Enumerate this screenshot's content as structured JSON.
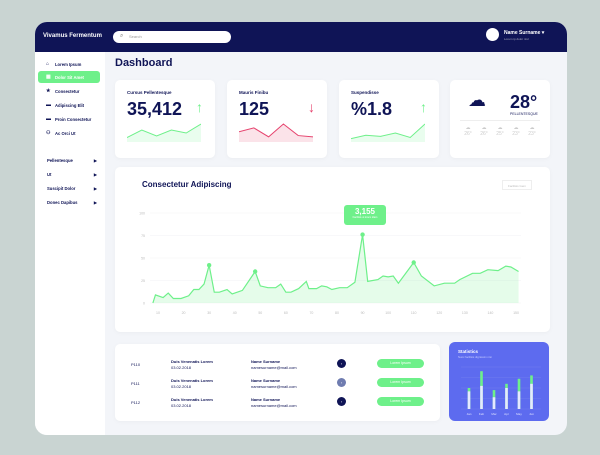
{
  "header": {
    "brand": "Vivamus Fermentum",
    "search_placeholder": "Search",
    "user_name": "Name Surname ▾",
    "user_sub": "Lorem ip dolor nisl",
    "bg": "#0f1456"
  },
  "sidebar": {
    "items": [
      {
        "label": "Lorem Ipsum",
        "icon": "home"
      },
      {
        "label": "Dolor Sit Amet",
        "icon": "grid",
        "active": true
      },
      {
        "label": "Consectetur",
        "icon": "star"
      },
      {
        "label": "Adipiscing Elit",
        "icon": "card"
      },
      {
        "label": "Proin Consectetur",
        "icon": "card"
      },
      {
        "label": "Ac Orci Ut",
        "icon": "users"
      }
    ],
    "groups": [
      "Pellentesque",
      "Ut",
      "Suscipit Dolor",
      "Donec Dapibus"
    ]
  },
  "page_title": "Dashboard",
  "kpis": [
    {
      "label": "Cursus Pellentesque",
      "value": "35,412",
      "trend": "up",
      "spark": [
        3,
        8,
        4,
        8,
        6,
        12
      ]
    },
    {
      "label": "Mauris Finibu",
      "value": "125",
      "trend": "down",
      "spark": [
        8,
        11,
        4,
        14,
        5,
        4
      ]
    },
    {
      "label": "Suspendisse",
      "value": "%1.8",
      "trend": "up",
      "spark": [
        3,
        6,
        5,
        8,
        4,
        16
      ]
    }
  ],
  "weather": {
    "temp": "28°",
    "label": "PELLENTESQUE",
    "forecast": [
      "26°",
      "26°",
      "25°",
      "23°",
      "23°"
    ]
  },
  "colors": {
    "green": "#6ef08a",
    "red": "#e6436e",
    "navy": "#0f1456",
    "purple": "#5d6bef"
  },
  "chart_data": {
    "type": "area",
    "title": "Consectetur Adipiscing",
    "filter_label": "Facilisis Gem",
    "xlim": [
      7,
      152
    ],
    "ylim": [
      0,
      100
    ],
    "xticks": [
      10,
      20,
      30,
      40,
      50,
      60,
      70,
      80,
      90,
      100,
      110,
      120,
      130,
      140,
      150
    ],
    "yticks": [
      0,
      25,
      50,
      75,
      100
    ],
    "x": [
      8,
      9,
      12,
      14,
      16,
      19,
      22,
      24,
      26,
      28,
      30,
      32,
      34,
      37,
      39,
      43,
      48,
      50,
      53,
      56,
      58,
      60,
      62,
      65,
      68,
      69,
      72,
      74,
      76,
      78,
      81,
      84,
      87,
      90,
      92,
      96,
      98,
      100,
      102,
      104,
      110,
      113,
      118,
      122,
      126,
      128,
      133,
      136,
      139,
      143,
      146,
      148,
      151
    ],
    "y": [
      0,
      9,
      6,
      11,
      5,
      5,
      8,
      15,
      15,
      21,
      42,
      12,
      12,
      15,
      10,
      14,
      35,
      19,
      17,
      17,
      21,
      12,
      12,
      16,
      24,
      16,
      16,
      19,
      18,
      15,
      17,
      17,
      23,
      76,
      24,
      26,
      30,
      29,
      30,
      22,
      45,
      30,
      19,
      22,
      22,
      26,
      33,
      33,
      37,
      36,
      41,
      40,
      35
    ],
    "highlighted": [
      30,
      48,
      90,
      110
    ],
    "tooltip": {
      "value": "3,155",
      "sub": "Facilisis ut lorem diam"
    }
  },
  "table": {
    "rows": [
      {
        "id": "P110",
        "title": "Duis Venenatis Lorem",
        "date": "03.02.2018",
        "name": "Name Surname",
        "email": "namesurname@mail.com",
        "button": "Lorem Ipsum"
      },
      {
        "id": "P111",
        "title": "Duis Venenatis Lorem",
        "date": "03.02.2018",
        "name": "Name Surname",
        "email": "namesurname@mail.com",
        "button": "Lorem Ipsum"
      },
      {
        "id": "P112",
        "title": "Duis Venenatis Lorem",
        "date": "03.02.2018",
        "name": "Name Surname",
        "email": "namesurname@mail.com",
        "button": "Lorem Ipsum"
      }
    ]
  },
  "statistics": {
    "title": "Statistics",
    "subtitle": "Nunc facilisis dignissim nisi",
    "months": [
      "Jan",
      "Feb",
      "Mar",
      "Apr",
      "May",
      "Jun"
    ],
    "total": [
      50,
      90,
      45,
      60,
      72,
      80
    ],
    "base": [
      42,
      55,
      28,
      50,
      42,
      60
    ]
  }
}
